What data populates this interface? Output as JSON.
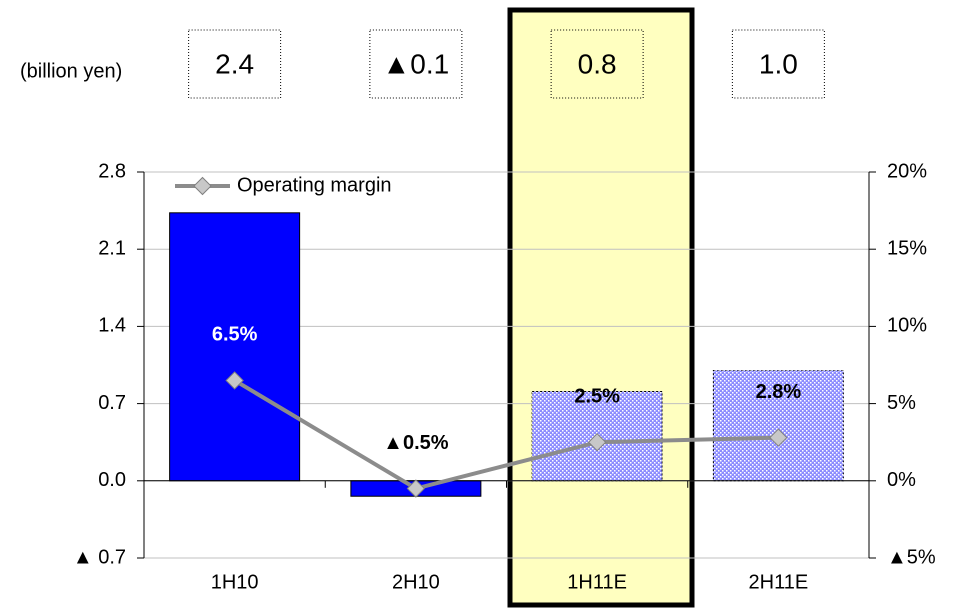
{
  "chart_data": {
    "type": "bar",
    "unit_label": "(billion yen)",
    "categories": [
      "1H10",
      "2H10",
      "1H11E",
      "2H11E"
    ],
    "values": [
      2.43,
      -0.14,
      0.81,
      1.0
    ],
    "value_labels": [
      "2.4",
      "▲0.1",
      "0.8",
      "1.0"
    ],
    "colors": [
      "#0000ff",
      "#0000ff",
      "#8c8cff",
      "#8c8cff"
    ],
    "ylim": [
      -0.7,
      2.8
    ],
    "yticks": [
      {
        "value": -0.7,
        "label": "▲ 0.7"
      },
      {
        "value": 0,
        "label": "0.0"
      },
      0.7,
      1.4,
      2.1,
      2.8
    ],
    "y2lim": [
      -5,
      20
    ],
    "y2ticks": [
      {
        "value": -5,
        "label": "▲5%"
      },
      {
        "value": 0,
        "label": "0%"
      },
      {
        "value": 5,
        "label": "5%"
      },
      {
        "value": 10,
        "label": "10%"
      },
      {
        "value": 15,
        "label": "15%"
      },
      {
        "value": 20,
        "label": "20%"
      }
    ],
    "series": [
      {
        "name": "Operating margin",
        "type": "line",
        "axis": "y2",
        "color": "#8c8c8c",
        "values": [
          6.5,
          -0.5,
          2.5,
          2.8
        ],
        "value_labels": [
          "6.5%",
          "▲0.5%",
          "2.5%",
          "2.8%"
        ]
      }
    ],
    "grid": true,
    "legend": "top-left"
  }
}
